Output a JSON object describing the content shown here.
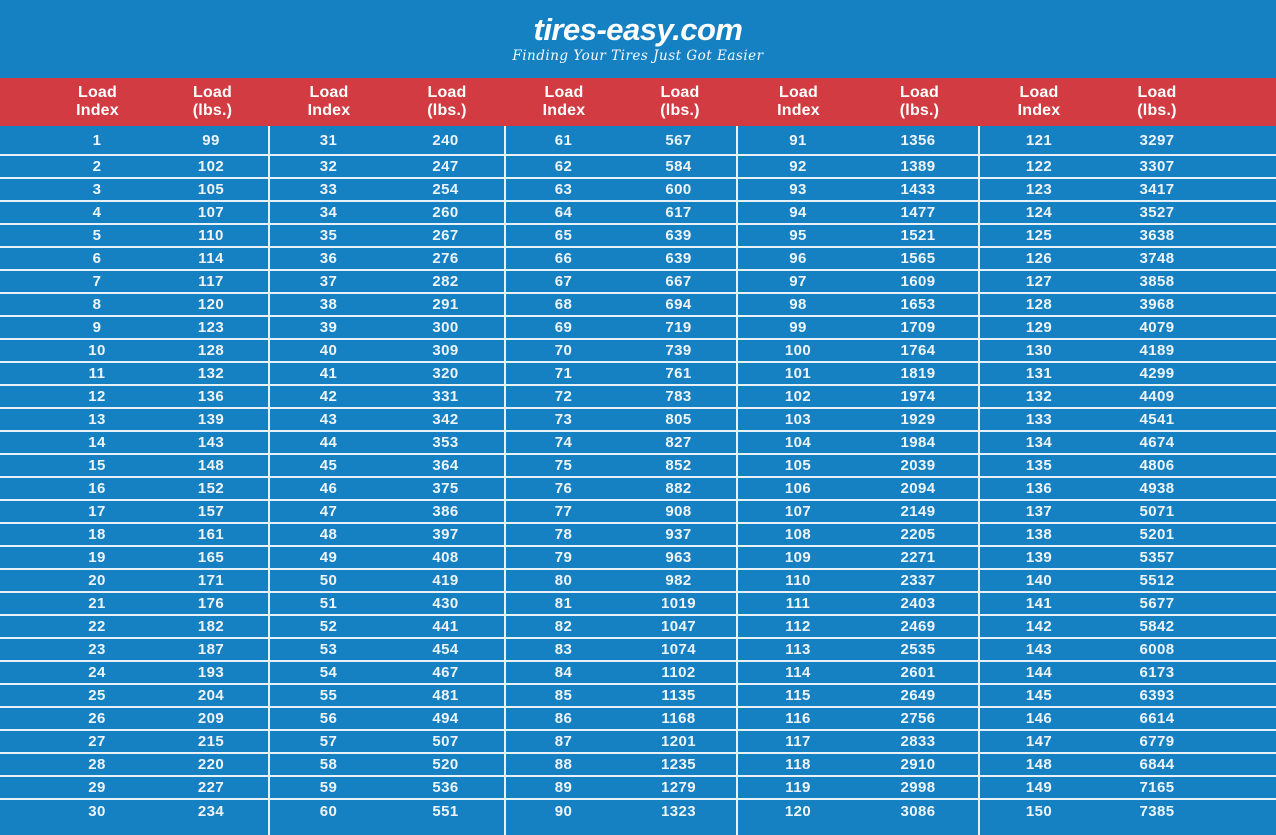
{
  "logo": {
    "brand": "tires-easy.com",
    "tagline": "Finding Your Tires Just Got Easier"
  },
  "colors": {
    "background_blue": "#1581c3",
    "header_red": "#d23b41",
    "text_white": "#eef4f8",
    "grid_line_white": "#e8f1f7"
  },
  "chart_data": {
    "type": "table",
    "columns": [
      "Load Index",
      "Load (lbs.)"
    ],
    "column_header_lines": {
      "index": "Load\nIndex",
      "lbs": "Load\n(lbs.)"
    },
    "layout_hint": "five side-by-side Load Index / Load (lbs.) column pairs, 30 rows each, white grid lines on blue",
    "groups": [
      {
        "rows": [
          [
            1,
            99
          ],
          [
            2,
            102
          ],
          [
            3,
            105
          ],
          [
            4,
            107
          ],
          [
            5,
            110
          ],
          [
            6,
            114
          ],
          [
            7,
            117
          ],
          [
            8,
            120
          ],
          [
            9,
            123
          ],
          [
            10,
            128
          ],
          [
            11,
            132
          ],
          [
            12,
            136
          ],
          [
            13,
            139
          ],
          [
            14,
            143
          ],
          [
            15,
            148
          ],
          [
            16,
            152
          ],
          [
            17,
            157
          ],
          [
            18,
            161
          ],
          [
            19,
            165
          ],
          [
            20,
            171
          ],
          [
            21,
            176
          ],
          [
            22,
            182
          ],
          [
            23,
            187
          ],
          [
            24,
            193
          ],
          [
            25,
            204
          ],
          [
            26,
            209
          ],
          [
            27,
            215
          ],
          [
            28,
            220
          ],
          [
            29,
            227
          ],
          [
            30,
            234
          ]
        ]
      },
      {
        "rows": [
          [
            31,
            240
          ],
          [
            32,
            247
          ],
          [
            33,
            254
          ],
          [
            34,
            260
          ],
          [
            35,
            267
          ],
          [
            36,
            276
          ],
          [
            37,
            282
          ],
          [
            38,
            291
          ],
          [
            39,
            300
          ],
          [
            40,
            309
          ],
          [
            41,
            320
          ],
          [
            42,
            331
          ],
          [
            43,
            342
          ],
          [
            44,
            353
          ],
          [
            45,
            364
          ],
          [
            46,
            375
          ],
          [
            47,
            386
          ],
          [
            48,
            397
          ],
          [
            49,
            408
          ],
          [
            50,
            419
          ],
          [
            51,
            430
          ],
          [
            52,
            441
          ],
          [
            53,
            454
          ],
          [
            54,
            467
          ],
          [
            55,
            481
          ],
          [
            56,
            494
          ],
          [
            57,
            507
          ],
          [
            58,
            520
          ],
          [
            59,
            536
          ],
          [
            60,
            551
          ]
        ]
      },
      {
        "rows": [
          [
            61,
            567
          ],
          [
            62,
            584
          ],
          [
            63,
            600
          ],
          [
            64,
            617
          ],
          [
            65,
            639
          ],
          [
            66,
            639
          ],
          [
            67,
            667
          ],
          [
            68,
            694
          ],
          [
            69,
            719
          ],
          [
            70,
            739
          ],
          [
            71,
            761
          ],
          [
            72,
            783
          ],
          [
            73,
            805
          ],
          [
            74,
            827
          ],
          [
            75,
            852
          ],
          [
            76,
            882
          ],
          [
            77,
            908
          ],
          [
            78,
            937
          ],
          [
            79,
            963
          ],
          [
            80,
            982
          ],
          [
            81,
            1019
          ],
          [
            82,
            1047
          ],
          [
            83,
            1074
          ],
          [
            84,
            1102
          ],
          [
            85,
            1135
          ],
          [
            86,
            1168
          ],
          [
            87,
            1201
          ],
          [
            88,
            1235
          ],
          [
            89,
            1279
          ],
          [
            90,
            1323
          ]
        ]
      },
      {
        "rows": [
          [
            91,
            1356
          ],
          [
            92,
            1389
          ],
          [
            93,
            1433
          ],
          [
            94,
            1477
          ],
          [
            95,
            1521
          ],
          [
            96,
            1565
          ],
          [
            97,
            1609
          ],
          [
            98,
            1653
          ],
          [
            99,
            1709
          ],
          [
            100,
            1764
          ],
          [
            101,
            1819
          ],
          [
            102,
            1974
          ],
          [
            103,
            1929
          ],
          [
            104,
            1984
          ],
          [
            105,
            2039
          ],
          [
            106,
            2094
          ],
          [
            107,
            2149
          ],
          [
            108,
            2205
          ],
          [
            109,
            2271
          ],
          [
            110,
            2337
          ],
          [
            111,
            2403
          ],
          [
            112,
            2469
          ],
          [
            113,
            2535
          ],
          [
            114,
            2601
          ],
          [
            115,
            2649
          ],
          [
            116,
            2756
          ],
          [
            117,
            2833
          ],
          [
            118,
            2910
          ],
          [
            119,
            2998
          ],
          [
            120,
            3086
          ]
        ]
      },
      {
        "rows": [
          [
            121,
            3297
          ],
          [
            122,
            3307
          ],
          [
            123,
            3417
          ],
          [
            124,
            3527
          ],
          [
            125,
            3638
          ],
          [
            126,
            3748
          ],
          [
            127,
            3858
          ],
          [
            128,
            3968
          ],
          [
            129,
            4079
          ],
          [
            130,
            4189
          ],
          [
            131,
            4299
          ],
          [
            132,
            4409
          ],
          [
            133,
            4541
          ],
          [
            134,
            4674
          ],
          [
            135,
            4806
          ],
          [
            136,
            4938
          ],
          [
            137,
            5071
          ],
          [
            138,
            5201
          ],
          [
            139,
            5357
          ],
          [
            140,
            5512
          ],
          [
            141,
            5677
          ],
          [
            142,
            5842
          ],
          [
            143,
            6008
          ],
          [
            144,
            6173
          ],
          [
            145,
            6393
          ],
          [
            146,
            6614
          ],
          [
            147,
            6779
          ],
          [
            148,
            6844
          ],
          [
            149,
            7165
          ],
          [
            150,
            7385
          ]
        ]
      }
    ]
  }
}
